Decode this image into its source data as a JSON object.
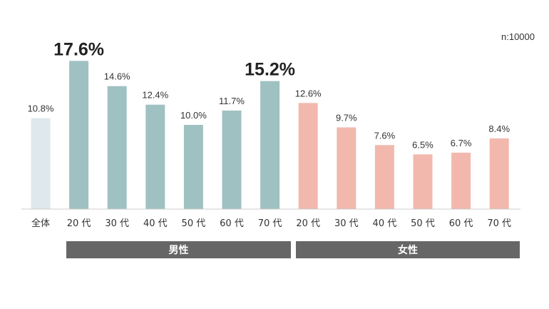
{
  "sample_size": "n:10000",
  "colors": {
    "overall": "#dfe8eb",
    "male": "#a0c1c2",
    "female": "#f2b8ad",
    "axis": "#cccccc",
    "group_bar": "#666666"
  },
  "chart_data": {
    "type": "bar",
    "title": "",
    "xlabel": "",
    "ylabel": "",
    "ylim": [
      0,
      20
    ],
    "unit": "%",
    "categories": [
      "全体",
      "20 代",
      "30 代",
      "40 代",
      "50 代",
      "60 代",
      "70 代",
      "20 代",
      "30 代",
      "40 代",
      "50 代",
      "60 代",
      "70 代"
    ],
    "values": [
      10.8,
      17.6,
      14.6,
      12.4,
      10.0,
      11.7,
      15.2,
      12.6,
      9.7,
      7.6,
      6.5,
      6.7,
      8.4
    ],
    "value_labels": [
      "10.8%",
      "17.6%",
      "14.6%",
      "12.4%",
      "10.0%",
      "11.7%",
      "15.2%",
      "12.6%",
      "9.7%",
      "7.6%",
      "6.5%",
      "6.7%",
      "8.4%"
    ],
    "groups": [
      "overall",
      "male",
      "male",
      "male",
      "male",
      "male",
      "male",
      "female",
      "female",
      "female",
      "female",
      "female",
      "female"
    ],
    "highlighted": [
      1,
      6
    ],
    "group_labels": {
      "male": "男性",
      "female": "女性"
    }
  }
}
